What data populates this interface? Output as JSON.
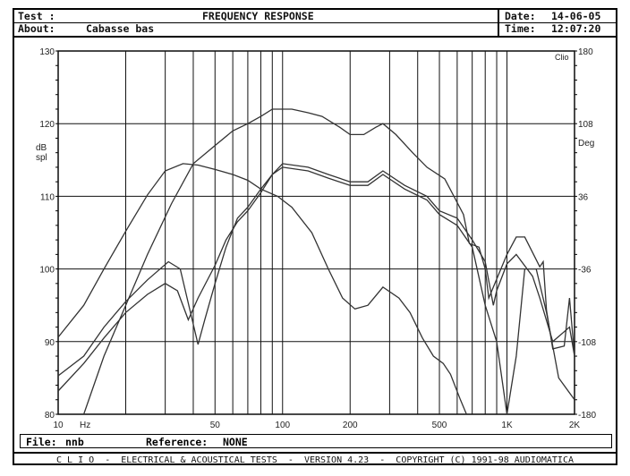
{
  "header": {
    "test_label": "Test :",
    "title": "FREQUENCY RESPONSE",
    "about_label": "About:",
    "about_value": "Cabasse bas",
    "date_label": "Date:",
    "date_value": "14-06-05",
    "time_label": "Time:",
    "time_value": "12:07:20"
  },
  "filebar": {
    "file_label": "File:",
    "file_value": "nnb",
    "reference_label": "Reference:",
    "reference_value": "NONE"
  },
  "footer": {
    "text": "C L I O  -  ELECTRICAL & ACOUSTICAL TESTS  -  VERSION 4.23  -  COPYRIGHT (C) 1991-98 AUDIOMATICA"
  },
  "chart_data": {
    "type": "line",
    "title": "FREQUENCY RESPONSE",
    "xlabel": "Hz",
    "ylabel": "dB spl",
    "y2label": "Deg",
    "corner_label": "Clio",
    "xscale": "log",
    "xlim": [
      10,
      2000
    ],
    "ylim": [
      80,
      130
    ],
    "y2lim": [
      -180,
      180
    ],
    "grid": true,
    "xticks": [
      10,
      50,
      100,
      200,
      500,
      1000,
      2000
    ],
    "xtick_labels": [
      "10",
      "50",
      "100",
      "200",
      "500",
      "1K",
      "2K"
    ],
    "xgrid": [
      10,
      20,
      30,
      40,
      50,
      60,
      70,
      80,
      90,
      100,
      200,
      300,
      400,
      500,
      600,
      700,
      800,
      900,
      1000,
      2000
    ],
    "yticks": [
      80,
      90,
      100,
      110,
      120,
      130
    ],
    "y2ticks": [
      -180,
      -108,
      -36,
      36,
      108,
      180
    ],
    "line_color": "#333333",
    "series": [
      {
        "x": [
          13,
          16,
          20,
          25,
          32,
          40,
          50,
          60,
          70,
          80,
          90,
          100,
          110,
          130,
          150,
          180,
          200,
          230,
          260,
          280,
          320,
          380,
          440,
          528,
          640,
          680,
          750,
          800,
          830,
          1000,
          1100,
          1200,
          1400,
          1450,
          1500,
          1600,
          1800,
          1900,
          2000
        ],
        "y": [
          80,
          88,
          95,
          102,
          109,
          114.5,
          117,
          119,
          120,
          121,
          122,
          122,
          122,
          121.5,
          121,
          119.5,
          118.5,
          118.5,
          119.5,
          120,
          118.5,
          116,
          114,
          112.4,
          107.5,
          103.5,
          103,
          100,
          96,
          102,
          104.4,
          104.4,
          100.3,
          101,
          94.3,
          89,
          89.4,
          96,
          88
        ]
      },
      {
        "x": [
          10,
          13,
          16,
          20,
          25,
          30,
          36,
          42,
          50,
          60,
          70,
          80,
          95,
          110,
          135,
          160,
          185,
          210,
          240,
          280,
          330,
          370,
          420,
          470,
          520,
          560,
          620,
          660
        ],
        "y": [
          90.6,
          95,
          100,
          105.2,
          110.2,
          113.5,
          114.5,
          114.3,
          113.7,
          113,
          112.2,
          111,
          110,
          108.5,
          105,
          100,
          96,
          94.5,
          95,
          97.5,
          96,
          94,
          90.5,
          88,
          87,
          85.5,
          82,
          80
        ]
      },
      {
        "x": [
          10,
          13,
          16,
          20,
          25,
          31,
          35,
          42,
          45,
          50,
          56,
          63,
          70,
          80,
          90,
          100,
          130,
          160,
          200,
          240,
          280,
          350,
          440,
          500,
          600,
          700,
          800,
          870,
          900,
          1000,
          1100,
          1300,
          1400,
          1600,
          1900,
          2000
        ],
        "y": [
          85.3,
          88,
          92,
          95.5,
          98.5,
          101,
          100,
          89.6,
          93,
          98,
          103,
          107,
          108.5,
          111,
          113,
          114.5,
          114,
          113,
          112,
          112,
          113.5,
          111.5,
          110,
          108,
          107,
          104,
          101,
          95,
          97,
          100.7,
          102,
          99,
          96,
          90,
          92,
          88
        ]
      },
      {
        "x": [
          10,
          13,
          16,
          20,
          25,
          30,
          34,
          38,
          42,
          50,
          56,
          63,
          70,
          80,
          90,
          100,
          130,
          160,
          200,
          240,
          280,
          350,
          440,
          500,
          600,
          700,
          800,
          900,
          1000,
          1100,
          1200,
          1350,
          1500,
          1700,
          2000
        ],
        "y": [
          83.2,
          87,
          90.5,
          94,
          96.5,
          98,
          97,
          93,
          96,
          100.5,
          104,
          106.5,
          108,
          110.5,
          113,
          114,
          113.5,
          112.5,
          111.5,
          111.5,
          113,
          111,
          109.5,
          107.5,
          106,
          103,
          95,
          90,
          80,
          88,
          100,
          100,
          94,
          85,
          82
        ]
      }
    ]
  }
}
